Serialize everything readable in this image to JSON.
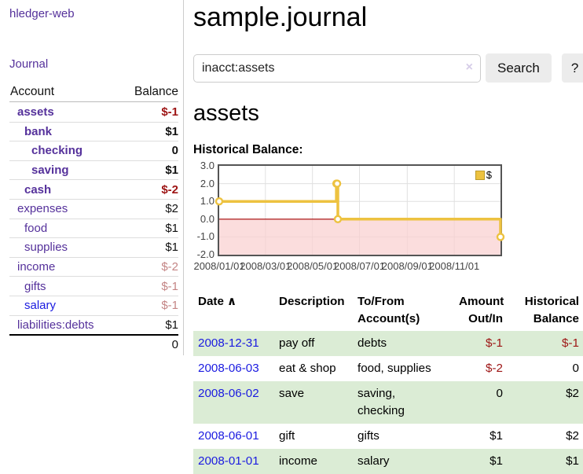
{
  "colors": {
    "link_purple": "#55319b",
    "link_blue": "#1a1ae0",
    "negative_strong": "#9d1414",
    "negative_muted": "#c48585",
    "row_stripe_green": "#dbecd5",
    "grid": "#e0e0e0",
    "plot_border": "#545454",
    "series_yellow": "#edc240",
    "negative_region": "#f9cfcf",
    "zero_line": "#a40000",
    "button_gray": "#ececec"
  },
  "sidebar": {
    "app_title": "hledger-web",
    "journal_link": "Journal",
    "accounts": {
      "header_account": "Account",
      "header_balance": "Balance",
      "rows": [
        {
          "name": "assets",
          "balance": "$-1",
          "depth": 1,
          "in_tree": true,
          "unvisited": false,
          "balance_class": "neg-strong"
        },
        {
          "name": "bank",
          "balance": "$1",
          "depth": 2,
          "in_tree": true,
          "unvisited": false,
          "balance_class": "pos-strong"
        },
        {
          "name": "checking",
          "balance": "0",
          "depth": 3,
          "in_tree": true,
          "unvisited": false,
          "balance_class": "pos-strong"
        },
        {
          "name": "saving",
          "balance": "$1",
          "depth": 3,
          "in_tree": true,
          "unvisited": false,
          "balance_class": "pos-strong"
        },
        {
          "name": "cash",
          "balance": "$-2",
          "depth": 2,
          "in_tree": true,
          "unvisited": false,
          "balance_class": "neg-strong"
        },
        {
          "name": "expenses",
          "balance": "$2",
          "depth": 1,
          "in_tree": false,
          "unvisited": false,
          "balance_class": "pos"
        },
        {
          "name": "food",
          "balance": "$1",
          "depth": 2,
          "in_tree": false,
          "unvisited": false,
          "balance_class": "pos"
        },
        {
          "name": "supplies",
          "balance": "$1",
          "depth": 2,
          "in_tree": false,
          "unvisited": false,
          "balance_class": "pos"
        },
        {
          "name": "income",
          "balance": "$-2",
          "depth": 1,
          "in_tree": false,
          "unvisited": false,
          "balance_class": "neg-muted"
        },
        {
          "name": "gifts",
          "balance": "$-1",
          "depth": 2,
          "in_tree": false,
          "unvisited": false,
          "balance_class": "neg-muted"
        },
        {
          "name": "salary",
          "balance": "$-1",
          "depth": 2,
          "in_tree": false,
          "unvisited": true,
          "balance_class": "neg-muted"
        },
        {
          "name": "liabilities:debts",
          "balance": "$1",
          "depth": 1,
          "in_tree": false,
          "unvisited": false,
          "balance_class": "pos"
        }
      ],
      "total": "0"
    }
  },
  "main": {
    "page_title": "sample.journal",
    "search": {
      "value": "inacct:assets",
      "clear_icon": "×",
      "search_button": "Search",
      "help_button": "?"
    },
    "account_heading": "assets",
    "section_label": "Historical Balance:"
  },
  "chart_data": {
    "type": "line",
    "style": "step-after",
    "title": "Historical Balance:",
    "x_range": [
      "2008-01-01",
      "2008-12-31"
    ],
    "ylim": [
      -2,
      3
    ],
    "yticks": [
      "3.0",
      "2.0",
      "1.0",
      "0.0",
      "-1.0",
      "-2.0"
    ],
    "ytick_values": [
      3,
      2,
      1,
      0,
      -1,
      -2
    ],
    "xticks": [
      {
        "label": "2008/01/01",
        "date": "2008-01-01"
      },
      {
        "label": "2008/03/01",
        "date": "2008-03-01"
      },
      {
        "label": "2008/05/01",
        "date": "2008-05-01"
      },
      {
        "label": "2008/07/01",
        "date": "2008-07-01"
      },
      {
        "label": "2008/09/01",
        "date": "2008-09-01"
      },
      {
        "label": "2008/11/01",
        "date": "2008-11-01"
      }
    ],
    "series": [
      {
        "name": "$",
        "color": "#edc240",
        "points": [
          [
            "2008-01-01",
            1
          ],
          [
            "2008-06-01",
            2
          ],
          [
            "2008-06-02",
            2
          ],
          [
            "2008-06-03",
            0
          ],
          [
            "2008-12-31",
            -1
          ]
        ]
      }
    ],
    "legend_position": "top-right",
    "negative_region_shaded": true,
    "grid": true
  },
  "register": {
    "headers": [
      {
        "lines": [
          "Date"
        ],
        "sort_indicator": "∧",
        "align": "left"
      },
      {
        "lines": [
          "Description"
        ],
        "align": "left"
      },
      {
        "lines": [
          "To/From",
          "Account(s)"
        ],
        "align": "left"
      },
      {
        "lines": [
          "Amount",
          "Out/In"
        ],
        "align": "right"
      },
      {
        "lines": [
          "Historical",
          "Balance"
        ],
        "align": "right"
      }
    ],
    "rows": [
      {
        "date": "2008-12-31",
        "description": "pay off",
        "accounts_lines": [
          "debts"
        ],
        "amount": "$-1",
        "amount_negative": true,
        "balance": "$-1",
        "balance_negative": true,
        "striped": true
      },
      {
        "date": "2008-06-03",
        "description": "eat & shop",
        "accounts_lines": [
          "food, supplies"
        ],
        "amount": "$-2",
        "amount_negative": true,
        "balance": "0",
        "balance_negative": false,
        "striped": false
      },
      {
        "date": "2008-06-02",
        "description": "save",
        "accounts_lines": [
          "saving,",
          "checking"
        ],
        "amount": "0",
        "amount_negative": false,
        "balance": "$2",
        "balance_negative": false,
        "striped": true
      },
      {
        "date": "2008-06-01",
        "description": "gift",
        "accounts_lines": [
          "gifts"
        ],
        "amount": "$1",
        "amount_negative": false,
        "balance": "$2",
        "balance_negative": false,
        "striped": false
      },
      {
        "date": "2008-01-01",
        "description": "income",
        "accounts_lines": [
          "salary"
        ],
        "amount": "$1",
        "amount_negative": false,
        "balance": "$1",
        "balance_negative": false,
        "striped": true
      }
    ]
  }
}
